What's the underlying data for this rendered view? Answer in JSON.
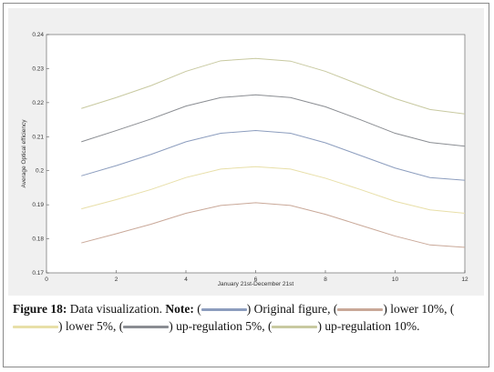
{
  "chart_data": {
    "type": "line",
    "xlabel": "January 21st-December 21st",
    "ylabel": "Average Optical efficiency",
    "xlim": [
      0,
      12
    ],
    "ylim": [
      0.17,
      0.24
    ],
    "xticks": [
      "0",
      "2",
      "4",
      "6",
      "8",
      "10",
      "12"
    ],
    "yticks": [
      "0.17",
      "0.18",
      "0.19",
      "0.2",
      "0.21",
      "0.22",
      "0.23",
      "0.24"
    ],
    "x": [
      1,
      2,
      3,
      4,
      5,
      6,
      7,
      8,
      9,
      10,
      11,
      12
    ],
    "series": [
      {
        "color": "#8c9dbe",
        "values": [
          0.1985,
          0.2015,
          0.2048,
          0.2085,
          0.211,
          0.2118,
          0.211,
          0.2082,
          0.2045,
          0.2008,
          0.198,
          0.1972
        ]
      },
      {
        "color": "#c9a898",
        "values": [
          0.1788,
          0.1815,
          0.1843,
          0.1875,
          0.1898,
          0.1906,
          0.1898,
          0.1872,
          0.184,
          0.1808,
          0.1782,
          0.1775
        ]
      },
      {
        "color": "#e8dfa8",
        "values": [
          0.1888,
          0.1915,
          0.1945,
          0.198,
          0.2005,
          0.2012,
          0.2005,
          0.1978,
          0.1945,
          0.191,
          0.1885,
          0.1875
        ]
      },
      {
        "color": "#8a8d92",
        "values": [
          0.2085,
          0.2118,
          0.2152,
          0.219,
          0.2215,
          0.2223,
          0.2215,
          0.2188,
          0.215,
          0.211,
          0.2083,
          0.2072
        ]
      },
      {
        "color": "#c8c9a0",
        "values": [
          0.2183,
          0.2215,
          0.225,
          0.2292,
          0.2323,
          0.233,
          0.2322,
          0.2292,
          0.2252,
          0.2212,
          0.218,
          0.2167
        ]
      }
    ]
  },
  "caption": {
    "figure_label": "Figure 18:",
    "title": " Data visualization. ",
    "note_label": "Note:",
    "open": " (",
    "items": [
      {
        "text": ") Original figure, (",
        "color": "#8c9dbe"
      },
      {
        "text": ") lower 10%, (",
        "color": "#c9a898"
      },
      {
        "text": ") lower 5%, (",
        "color": "#e8dfa8"
      },
      {
        "text": ") up-regulation 5%, (",
        "color": "#8a8d92"
      },
      {
        "text": ") up-regulation 10%.",
        "color": "#c8c9a0"
      }
    ]
  }
}
